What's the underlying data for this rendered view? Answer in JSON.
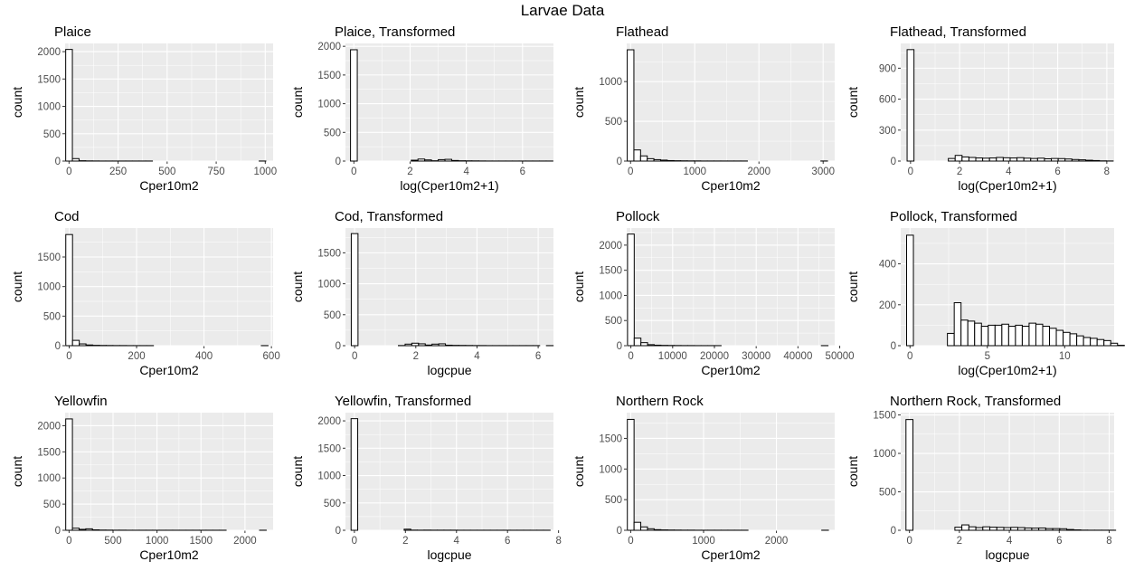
{
  "figure_title": "Larvae Data",
  "chart_data": [
    {
      "type": "bar",
      "title": "Plaice",
      "xlabel": "Cper10m2",
      "ylabel": "count",
      "xlim": [
        -20,
        1040
      ],
      "ylim": [
        0,
        2150
      ],
      "xticks": [
        {
          "v": 0,
          "label": "0"
        },
        {
          "v": 250,
          "label": "250"
        },
        {
          "v": 500,
          "label": "500"
        },
        {
          "v": 750,
          "label": "750"
        },
        {
          "v": 1000,
          "label": "1000"
        }
      ],
      "yticks": [
        {
          "v": 0,
          "label": "0"
        },
        {
          "v": 500,
          "label": "500"
        },
        {
          "v": 1000,
          "label": "1000"
        },
        {
          "v": 1500,
          "label": "1500"
        },
        {
          "v": 2000,
          "label": "2000"
        }
      ],
      "x0": -17,
      "binwidth": 34,
      "counts": [
        2040,
        45,
        6,
        3,
        2,
        1,
        1,
        1,
        1,
        1,
        1,
        1,
        1,
        0,
        0,
        0,
        0,
        0,
        0,
        0,
        0,
        0,
        0,
        0,
        0,
        0,
        0,
        0,
        0,
        1
      ]
    },
    {
      "type": "bar",
      "title": "Plaice, Transformed",
      "xlabel": "log(Cper10m2+1)",
      "ylabel": "count",
      "xlim": [
        -0.3,
        7.1
      ],
      "ylim": [
        0,
        2050
      ],
      "xticks": [
        {
          "v": 0,
          "label": "0"
        },
        {
          "v": 2,
          "label": "2"
        },
        {
          "v": 4,
          "label": "4"
        },
        {
          "v": 6,
          "label": "6"
        }
      ],
      "yticks": [
        {
          "v": 0,
          "label": "0"
        },
        {
          "v": 500,
          "label": "500"
        },
        {
          "v": 1000,
          "label": "1000"
        },
        {
          "v": 1500,
          "label": "1500"
        },
        {
          "v": 2000,
          "label": "2000"
        }
      ],
      "x0": -0.12,
      "binwidth": 0.24,
      "counts": [
        1940,
        0,
        0,
        0,
        0,
        0,
        0,
        0,
        0,
        15,
        35,
        20,
        5,
        25,
        30,
        10,
        5,
        4,
        3,
        2,
        1,
        1,
        1,
        1,
        1,
        1,
        1,
        1,
        1,
        1
      ]
    },
    {
      "type": "bar",
      "title": "Flathead",
      "xlabel": "Cper10m2",
      "ylabel": "count",
      "xlim": [
        -60,
        3180
      ],
      "ylim": [
        0,
        1480
      ],
      "xticks": [
        {
          "v": 0,
          "label": "0"
        },
        {
          "v": 1000,
          "label": "1000"
        },
        {
          "v": 2000,
          "label": "2000"
        },
        {
          "v": 3000,
          "label": "3000"
        }
      ],
      "yticks": [
        {
          "v": 0,
          "label": "0"
        },
        {
          "v": 500,
          "label": "500"
        },
        {
          "v": 1000,
          "label": "1000"
        }
      ],
      "x0": -52,
      "binwidth": 104,
      "counts": [
        1400,
        140,
        65,
        30,
        18,
        12,
        6,
        4,
        3,
        2,
        2,
        1,
        1,
        1,
        1,
        1,
        1,
        1,
        0,
        0,
        0,
        0,
        0,
        0,
        0,
        0,
        0,
        0,
        0,
        1
      ]
    },
    {
      "type": "bar",
      "title": "Flathead, Transformed",
      "xlabel": "log(Cper10m2+1)",
      "ylabel": "count",
      "xlim": [
        -0.4,
        8.3
      ],
      "ylim": [
        0,
        1140
      ],
      "xticks": [
        {
          "v": 0,
          "label": "0"
        },
        {
          "v": 2,
          "label": "2"
        },
        {
          "v": 4,
          "label": "4"
        },
        {
          "v": 6,
          "label": "6"
        },
        {
          "v": 8,
          "label": "8"
        }
      ],
      "yticks": [
        {
          "v": 0,
          "label": "0"
        },
        {
          "v": 300,
          "label": "300"
        },
        {
          "v": 600,
          "label": "600"
        },
        {
          "v": 900,
          "label": "900"
        }
      ],
      "x0": -0.14,
      "binwidth": 0.28,
      "counts": [
        1080,
        0,
        0,
        0,
        0,
        0,
        25,
        55,
        40,
        35,
        30,
        28,
        30,
        35,
        32,
        30,
        33,
        28,
        25,
        28,
        22,
        25,
        24,
        20,
        15,
        12,
        8,
        5,
        2,
        1
      ]
    },
    {
      "type": "bar",
      "title": "Cod",
      "xlabel": "Cper10m2",
      "ylabel": "count",
      "xlim": [
        -12,
        605
      ],
      "ylim": [
        0,
        1990
      ],
      "xticks": [
        {
          "v": 0,
          "label": "0"
        },
        {
          "v": 200,
          "label": "200"
        },
        {
          "v": 400,
          "label": "400"
        },
        {
          "v": 600,
          "label": "600"
        }
      ],
      "yticks": [
        {
          "v": 0,
          "label": "0"
        },
        {
          "v": 500,
          "label": "500"
        },
        {
          "v": 1000,
          "label": "1000"
        },
        {
          "v": 1500,
          "label": "1500"
        }
      ],
      "x0": -10,
      "binwidth": 20,
      "counts": [
        1880,
        90,
        30,
        12,
        6,
        4,
        3,
        2,
        2,
        1,
        1,
        1,
        1,
        0,
        0,
        0,
        0,
        0,
        0,
        0,
        0,
        0,
        0,
        0,
        0,
        0,
        0,
        0,
        0,
        1
      ]
    },
    {
      "type": "bar",
      "title": "Cod, Transformed",
      "xlabel": "logcpue",
      "ylabel": "count",
      "xlim": [
        -0.3,
        6.5
      ],
      "ylim": [
        0,
        1900
      ],
      "xticks": [
        {
          "v": 0,
          "label": "0"
        },
        {
          "v": 2,
          "label": "2"
        },
        {
          "v": 4,
          "label": "4"
        },
        {
          "v": 6,
          "label": "6"
        }
      ],
      "yticks": [
        {
          "v": 0,
          "label": "0"
        },
        {
          "v": 500,
          "label": "500"
        },
        {
          "v": 1000,
          "label": "1000"
        },
        {
          "v": 1500,
          "label": "1500"
        }
      ],
      "x0": -0.11,
      "binwidth": 0.22,
      "counts": [
        1810,
        0,
        0,
        0,
        0,
        0,
        0,
        2,
        25,
        40,
        30,
        10,
        25,
        30,
        8,
        5,
        4,
        3,
        2,
        2,
        1,
        1,
        1,
        1,
        1,
        1,
        1,
        1,
        0,
        1
      ]
    },
    {
      "type": "bar",
      "title": "Pollock",
      "xlabel": "Cper10m2",
      "ylabel": "count",
      "xlim": [
        -1000,
        48800
      ],
      "ylim": [
        0,
        2340
      ],
      "xticks": [
        {
          "v": 0,
          "label": "0"
        },
        {
          "v": 10000,
          "label": "10000"
        },
        {
          "v": 20000,
          "label": "20000"
        },
        {
          "v": 30000,
          "label": "30000"
        },
        {
          "v": 40000,
          "label": "40000"
        },
        {
          "v": 50000,
          "label": "50000"
        }
      ],
      "yticks": [
        {
          "v": 0,
          "label": "0"
        },
        {
          "v": 500,
          "label": "500"
        },
        {
          "v": 1000,
          "label": "1000"
        },
        {
          "v": 1500,
          "label": "1500"
        },
        {
          "v": 2000,
          "label": "2000"
        }
      ],
      "x0": -800,
      "binwidth": 1600,
      "counts": [
        2220,
        150,
        60,
        20,
        10,
        6,
        4,
        3,
        2,
        2,
        1,
        1,
        1,
        1,
        0,
        0,
        0,
        0,
        0,
        0,
        0,
        0,
        0,
        0,
        0,
        0,
        0,
        0,
        0,
        1
      ]
    },
    {
      "type": "bar",
      "title": "Pollock, Transformed",
      "xlabel": "log(Cper10m2+1)",
      "ylabel": "count",
      "xlim": [
        -0.6,
        13.2
      ],
      "ylim": [
        0,
        575
      ],
      "xticks": [
        {
          "v": 0,
          "label": "0"
        },
        {
          "v": 5,
          "label": "5"
        },
        {
          "v": 10,
          "label": "10"
        }
      ],
      "yticks": [
        {
          "v": 0,
          "label": "0"
        },
        {
          "v": 200,
          "label": "200"
        },
        {
          "v": 400,
          "label": "400"
        }
      ],
      "x0": -0.22,
      "binwidth": 0.44,
      "counts": [
        540,
        0,
        0,
        0,
        0,
        0,
        60,
        210,
        125,
        120,
        110,
        95,
        100,
        100,
        105,
        95,
        100,
        95,
        110,
        105,
        95,
        85,
        75,
        65,
        58,
        48,
        40,
        36,
        30,
        25,
        12,
        2
      ]
    },
    {
      "type": "bar",
      "title": "Yellowfin",
      "xlabel": "Cper10m2",
      "ylabel": "count",
      "xlim": [
        -45,
        2320
      ],
      "ylim": [
        0,
        2250
      ],
      "xticks": [
        {
          "v": 0,
          "label": "0"
        },
        {
          "v": 500,
          "label": "500"
        },
        {
          "v": 1000,
          "label": "1000"
        },
        {
          "v": 1500,
          "label": "1500"
        },
        {
          "v": 2000,
          "label": "2000"
        }
      ],
      "yticks": [
        {
          "v": 0,
          "label": "0"
        },
        {
          "v": 500,
          "label": "500"
        },
        {
          "v": 1000,
          "label": "1000"
        },
        {
          "v": 1500,
          "label": "1500"
        },
        {
          "v": 2000,
          "label": "2000"
        }
      ],
      "x0": -38,
      "binwidth": 76,
      "counts": [
        2130,
        40,
        18,
        28,
        8,
        4,
        3,
        2,
        2,
        1,
        1,
        1,
        1,
        1,
        1,
        1,
        1,
        1,
        1,
        1,
        1,
        1,
        1,
        1,
        0,
        0,
        0,
        0,
        0,
        1
      ]
    },
    {
      "type": "bar",
      "title": "Yellowfin, Transformed",
      "xlabel": "logcpue",
      "ylabel": "count",
      "xlim": [
        -0.35,
        7.8
      ],
      "ylim": [
        0,
        2150
      ],
      "xticks": [
        {
          "v": 0,
          "label": "0"
        },
        {
          "v": 2,
          "label": "2"
        },
        {
          "v": 4,
          "label": "4"
        },
        {
          "v": 6,
          "label": "6"
        },
        {
          "v": 8,
          "label": "8"
        }
      ],
      "yticks": [
        {
          "v": 0,
          "label": "0"
        },
        {
          "v": 500,
          "label": "500"
        },
        {
          "v": 1000,
          "label": "1000"
        },
        {
          "v": 1500,
          "label": "1500"
        },
        {
          "v": 2000,
          "label": "2000"
        }
      ],
      "x0": -0.13,
      "binwidth": 0.26,
      "counts": [
        2040,
        0,
        0,
        0,
        0,
        0,
        0,
        0,
        20,
        3,
        2,
        3,
        2,
        2,
        2,
        2,
        1,
        1,
        1,
        1,
        1,
        1,
        1,
        1,
        1,
        1,
        1,
        1,
        1,
        1
      ]
    },
    {
      "type": "bar",
      "title": "Northern Rock",
      "xlabel": "Cper10m2",
      "ylabel": "count",
      "xlim": [
        -55,
        2800
      ],
      "ylim": [
        0,
        1920
      ],
      "xticks": [
        {
          "v": 0,
          "label": "0"
        },
        {
          "v": 1000,
          "label": "1000"
        },
        {
          "v": 2000,
          "label": "2000"
        }
      ],
      "yticks": [
        {
          "v": 0,
          "label": "0"
        },
        {
          "v": 500,
          "label": "500"
        },
        {
          "v": 1000,
          "label": "1000"
        },
        {
          "v": 1500,
          "label": "1500"
        }
      ],
      "x0": -46,
      "binwidth": 92,
      "counts": [
        1810,
        130,
        55,
        25,
        10,
        6,
        4,
        3,
        2,
        2,
        1,
        1,
        1,
        1,
        1,
        1,
        1,
        1,
        0,
        0,
        0,
        0,
        0,
        0,
        0,
        0,
        0,
        0,
        0,
        1
      ]
    },
    {
      "type": "bar",
      "title": "Northern Rock, Transformed",
      "xlabel": "logcpue",
      "ylabel": "count",
      "xlim": [
        -0.35,
        8.2
      ],
      "ylim": [
        0,
        1530
      ],
      "xticks": [
        {
          "v": 0,
          "label": "0"
        },
        {
          "v": 2,
          "label": "2"
        },
        {
          "v": 4,
          "label": "4"
        },
        {
          "v": 6,
          "label": "6"
        },
        {
          "v": 8,
          "label": "8"
        }
      ],
      "yticks": [
        {
          "v": 0,
          "label": "0"
        },
        {
          "v": 500,
          "label": "500"
        },
        {
          "v": 1000,
          "label": "1000"
        },
        {
          "v": 1500,
          "label": "1500"
        }
      ],
      "x0": -0.14,
      "binwidth": 0.28,
      "counts": [
        1440,
        0,
        0,
        0,
        0,
        0,
        0,
        40,
        70,
        45,
        35,
        45,
        40,
        38,
        35,
        38,
        35,
        30,
        28,
        30,
        22,
        22,
        20,
        10,
        5,
        2,
        1,
        1,
        1,
        1
      ]
    }
  ]
}
